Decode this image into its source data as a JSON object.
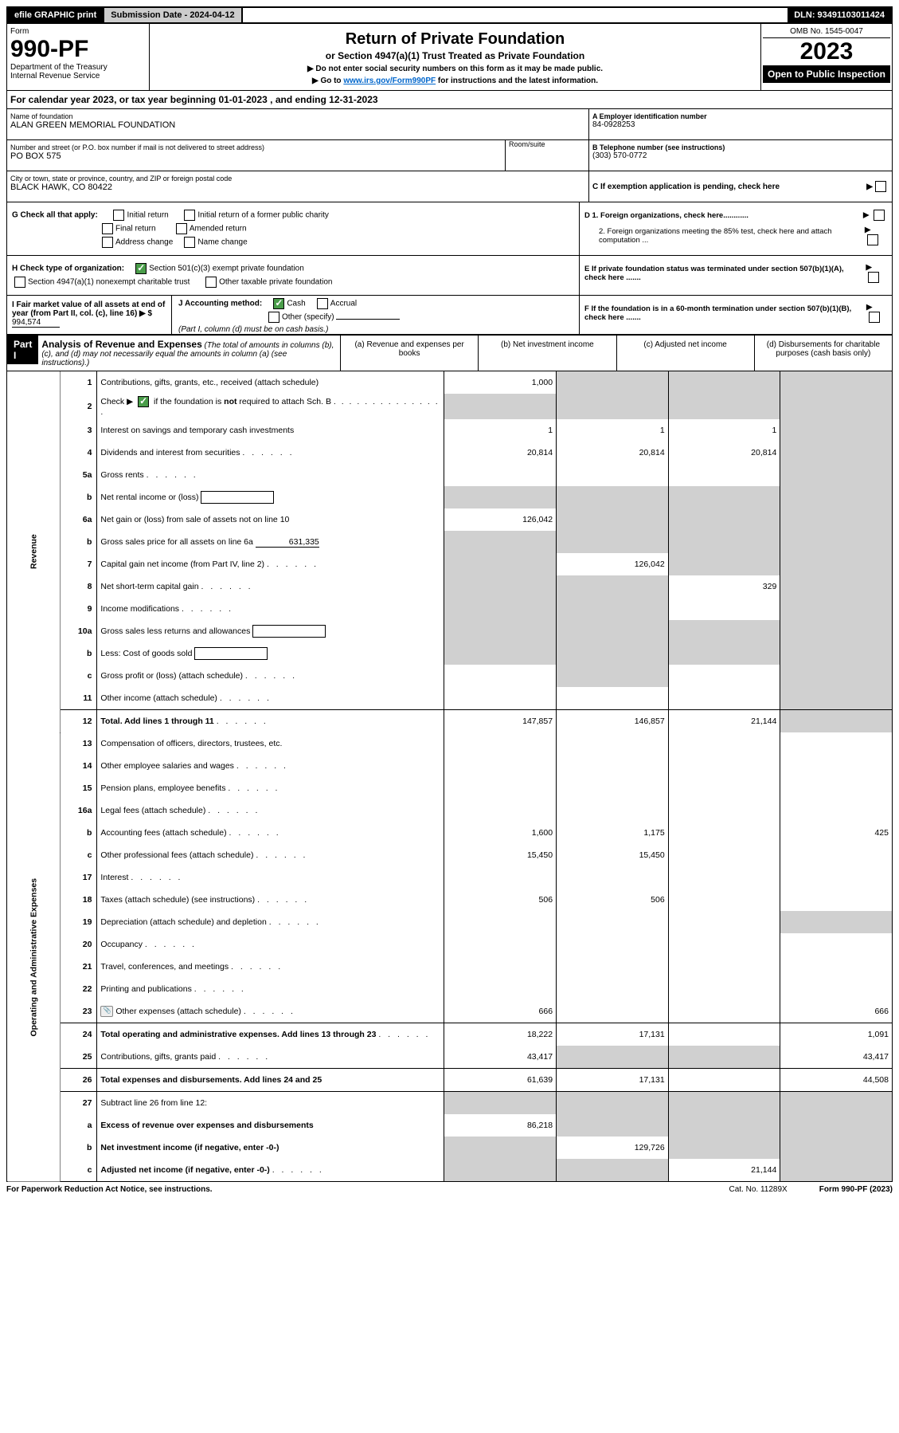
{
  "topbar": {
    "efile": "efile GRAPHIC print",
    "submission": "Submission Date - 2024-04-12",
    "dln": "DLN: 93491103011424"
  },
  "header": {
    "form_label": "Form",
    "form_no": "990-PF",
    "dept": "Department of the Treasury",
    "irs": "Internal Revenue Service",
    "title": "Return of Private Foundation",
    "subtitle": "or Section 4947(a)(1) Trust Treated as Private Foundation",
    "instr1": "▶ Do not enter social security numbers on this form as it may be made public.",
    "instr2_pre": "▶ Go to ",
    "instr2_link": "www.irs.gov/Form990PF",
    "instr2_post": " for instructions and the latest information.",
    "omb": "OMB No. 1545-0047",
    "year": "2023",
    "open": "Open to Public Inspection"
  },
  "calyear": "For calendar year 2023, or tax year beginning 01-01-2023                               , and ending 12-31-2023",
  "info": {
    "name_label": "Name of foundation",
    "name": "ALAN GREEN MEMORIAL FOUNDATION",
    "street_label": "Number and street (or P.O. box number if mail is not delivered to street address)",
    "room_label": "Room/suite",
    "street": "PO BOX 575",
    "city_label": "City or town, state or province, country, and ZIP or foreign postal code",
    "city": "BLACK HAWK, CO  80422",
    "ein_label": "A Employer identification number",
    "ein": "84-0928253",
    "phone_label": "B Telephone number (see instructions)",
    "phone": "(303) 570-0772",
    "c_label": "C If exemption application is pending, check here"
  },
  "checks": {
    "g_label": "G Check all that apply:",
    "initial": "Initial return",
    "initial_former": "Initial return of a former public charity",
    "final": "Final return",
    "amended": "Amended return",
    "address": "Address change",
    "name_change": "Name change",
    "h_label": "H Check type of organization:",
    "h_501c3": "Section 501(c)(3) exempt private foundation",
    "h_4947": "Section 4947(a)(1) nonexempt charitable trust",
    "h_other_tax": "Other taxable private foundation",
    "i_label": "I Fair market value of all assets at end of year (from Part II, col. (c), line 16) ▶ $",
    "i_value": "994,574",
    "j_label": "J Accounting method:",
    "j_cash": "Cash",
    "j_accrual": "Accrual",
    "j_other": "Other (specify)",
    "j_note": "(Part I, column (d) must be on cash basis.)",
    "d1": "D 1. Foreign organizations, check here............",
    "d2": "2. Foreign organizations meeting the 85% test, check here and attach computation ...",
    "e": "E  If private foundation status was terminated under section 507(b)(1)(A), check here .......",
    "f": "F  If the foundation is in a 60-month termination under section 507(b)(1)(B), check here .......",
    "arrow": "▶"
  },
  "part1": {
    "label": "Part I",
    "title": "Analysis of Revenue and Expenses",
    "note": " (The total of amounts in columns (b), (c), and (d) may not necessarily equal the amounts in column (a) (see instructions).)",
    "col_a": "(a)   Revenue and expenses per books",
    "col_b": "(b)   Net investment income",
    "col_c": "(c)   Adjusted net income",
    "col_d": "(d)   Disbursements for charitable purposes (cash basis only)",
    "revenue_label": "Revenue",
    "expenses_label": "Operating and Administrative Expenses"
  },
  "rows": [
    {
      "ln": "1",
      "desc": "Contributions, gifts, grants, etc., received (attach schedule)",
      "a": "1,000",
      "b": "",
      "c": "",
      "d": "",
      "shade_b": true,
      "shade_c": true,
      "shade_d": true
    },
    {
      "ln": "2",
      "desc": "Check ▶ [✓] if the foundation is not required to attach Sch. B",
      "check": true,
      "dots": true,
      "a": "",
      "b": "",
      "c": "",
      "d": "",
      "shade_all": true
    },
    {
      "ln": "3",
      "desc": "Interest on savings and temporary cash investments",
      "a": "1",
      "b": "1",
      "c": "1",
      "d": "",
      "shade_d": true
    },
    {
      "ln": "4",
      "desc": "Dividends and interest from securities",
      "dots": true,
      "a": "20,814",
      "b": "20,814",
      "c": "20,814",
      "d": "",
      "shade_d": true
    },
    {
      "ln": "5a",
      "desc": "Gross rents",
      "dots": true,
      "a": "",
      "b": "",
      "c": "",
      "d": "",
      "shade_d": true
    },
    {
      "ln": "b",
      "desc": "Net rental income or (loss)",
      "inline": true,
      "a": "",
      "b": "",
      "c": "",
      "d": "",
      "shade_abcd": true
    },
    {
      "ln": "6a",
      "desc": "Net gain or (loss) from sale of assets not on line 10",
      "a": "126,042",
      "b": "",
      "c": "",
      "d": "",
      "shade_b": true,
      "shade_c": true,
      "shade_d": true
    },
    {
      "ln": "b",
      "desc": "Gross sales price for all assets on line 6a",
      "inline_val": "631,335",
      "a": "",
      "b": "",
      "c": "",
      "d": "",
      "shade_abcd": true
    },
    {
      "ln": "7",
      "desc": "Capital gain net income (from Part IV, line 2)",
      "dots": true,
      "a": "",
      "b": "126,042",
      "c": "",
      "d": "",
      "shade_a": true,
      "shade_c": true,
      "shade_d": true
    },
    {
      "ln": "8",
      "desc": "Net short-term capital gain",
      "dots": true,
      "a": "",
      "b": "",
      "c": "329",
      "d": "",
      "shade_a": true,
      "shade_b": true,
      "shade_d": true
    },
    {
      "ln": "9",
      "desc": "Income modifications",
      "dots": true,
      "a": "",
      "b": "",
      "c": "",
      "d": "",
      "shade_a": true,
      "shade_b": true,
      "shade_d": true
    },
    {
      "ln": "10a",
      "desc": "Gross sales less returns and allowances",
      "inline": true,
      "a": "",
      "b": "",
      "c": "",
      "d": "",
      "shade_abcd": true
    },
    {
      "ln": "b",
      "desc": "Less: Cost of goods sold",
      "dots": true,
      "inline": true,
      "a": "",
      "b": "",
      "c": "",
      "d": "",
      "shade_abcd": true
    },
    {
      "ln": "c",
      "desc": "Gross profit or (loss) (attach schedule)",
      "dots": true,
      "a": "",
      "b": "",
      "c": "",
      "d": "",
      "shade_b": true,
      "shade_d": true
    },
    {
      "ln": "11",
      "desc": "Other income (attach schedule)",
      "dots": true,
      "a": "",
      "b": "",
      "c": "",
      "d": "",
      "shade_d": true
    },
    {
      "ln": "12",
      "desc": "Total. Add lines 1 through 11",
      "bold": true,
      "dots": true,
      "a": "147,857",
      "b": "146,857",
      "c": "21,144",
      "d": "",
      "shade_d": true,
      "border": true
    }
  ],
  "exp_rows": [
    {
      "ln": "13",
      "desc": "Compensation of officers, directors, trustees, etc.",
      "a": "",
      "b": "",
      "c": "",
      "d": ""
    },
    {
      "ln": "14",
      "desc": "Other employee salaries and wages",
      "dots": true,
      "a": "",
      "b": "",
      "c": "",
      "d": ""
    },
    {
      "ln": "15",
      "desc": "Pension plans, employee benefits",
      "dots": true,
      "a": "",
      "b": "",
      "c": "",
      "d": ""
    },
    {
      "ln": "16a",
      "desc": "Legal fees (attach schedule)",
      "dots": true,
      "a": "",
      "b": "",
      "c": "",
      "d": ""
    },
    {
      "ln": "b",
      "desc": "Accounting fees (attach schedule)",
      "dots": true,
      "a": "1,600",
      "b": "1,175",
      "c": "",
      "d": "425"
    },
    {
      "ln": "c",
      "desc": "Other professional fees (attach schedule)",
      "dots": true,
      "a": "15,450",
      "b": "15,450",
      "c": "",
      "d": ""
    },
    {
      "ln": "17",
      "desc": "Interest",
      "dots": true,
      "a": "",
      "b": "",
      "c": "",
      "d": ""
    },
    {
      "ln": "18",
      "desc": "Taxes (attach schedule) (see instructions)",
      "dots": true,
      "a": "506",
      "b": "506",
      "c": "",
      "d": ""
    },
    {
      "ln": "19",
      "desc": "Depreciation (attach schedule) and depletion",
      "dots": true,
      "a": "",
      "b": "",
      "c": "",
      "d": "",
      "shade_d": true
    },
    {
      "ln": "20",
      "desc": "Occupancy",
      "dots": true,
      "a": "",
      "b": "",
      "c": "",
      "d": ""
    },
    {
      "ln": "21",
      "desc": "Travel, conferences, and meetings",
      "dots": true,
      "a": "",
      "b": "",
      "c": "",
      "d": ""
    },
    {
      "ln": "22",
      "desc": "Printing and publications",
      "dots": true,
      "a": "",
      "b": "",
      "c": "",
      "d": ""
    },
    {
      "ln": "23",
      "desc": "Other expenses (attach schedule)",
      "dots": true,
      "icon": true,
      "a": "666",
      "b": "",
      "c": "",
      "d": "666"
    },
    {
      "ln": "24",
      "desc": "Total operating and administrative expenses. Add lines 13 through 23",
      "bold": true,
      "dots": true,
      "a": "18,222",
      "b": "17,131",
      "c": "",
      "d": "1,091",
      "border": true
    },
    {
      "ln": "25",
      "desc": "Contributions, gifts, grants paid",
      "dots": true,
      "a": "43,417",
      "b": "",
      "c": "",
      "d": "43,417",
      "shade_b": true,
      "shade_c": true
    },
    {
      "ln": "26",
      "desc": "Total expenses and disbursements. Add lines 24 and 25",
      "bold": true,
      "a": "61,639",
      "b": "17,131",
      "c": "",
      "d": "44,508",
      "border": true
    },
    {
      "ln": "27",
      "desc": "Subtract line 26 from line 12:",
      "a": "",
      "b": "",
      "c": "",
      "d": "",
      "shade_abcd": true,
      "border": true
    },
    {
      "ln": "a",
      "desc": "Excess of revenue over expenses and disbursements",
      "bold": true,
      "a": "86,218",
      "b": "",
      "c": "",
      "d": "",
      "shade_b": true,
      "shade_c": true,
      "shade_d": true
    },
    {
      "ln": "b",
      "desc": "Net investment income (if negative, enter -0-)",
      "bold": true,
      "a": "",
      "b": "129,726",
      "c": "",
      "d": "",
      "shade_a": true,
      "shade_c": true,
      "shade_d": true
    },
    {
      "ln": "c",
      "desc": "Adjusted net income (if negative, enter -0-)",
      "bold": true,
      "dots": true,
      "a": "",
      "b": "",
      "c": "21,144",
      "d": "",
      "shade_a": true,
      "shade_b": true,
      "shade_d": true
    }
  ],
  "footer": {
    "left": "For Paperwork Reduction Act Notice, see instructions.",
    "mid": "Cat. No. 11289X",
    "right": "Form 990-PF (2023)"
  }
}
